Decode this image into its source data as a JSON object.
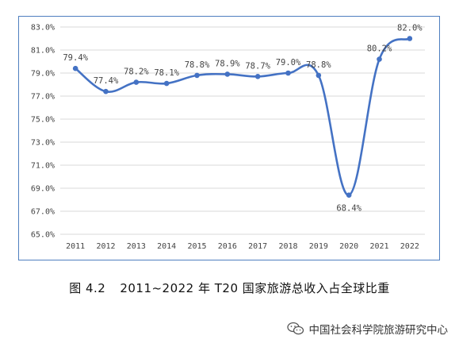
{
  "caption": {
    "figure_number": "图 4.2",
    "title": "2011~2022 年 T20 国家旅游总收入占全球比重"
  },
  "watermark": {
    "text": "中国社会科学院旅游研究中心",
    "icon": "wechat-icon"
  },
  "colors": {
    "line": "#4472c4",
    "grid": "#d9d9d9",
    "frame": "#4f7fbf"
  },
  "chart_data": {
    "type": "line",
    "title": "",
    "xlabel": "",
    "ylabel": "",
    "categories": [
      "2011",
      "2012",
      "2013",
      "2014",
      "2015",
      "2016",
      "2017",
      "2018",
      "2019",
      "2020",
      "2021",
      "2022"
    ],
    "series": [
      {
        "values": [
          79.4,
          77.4,
          78.2,
          78.1,
          78.8,
          78.9,
          78.7,
          79.0,
          78.8,
          68.4,
          80.2,
          82.0
        ]
      }
    ],
    "data_labels": [
      "79.4%",
      "77.4%",
      "78.2%",
      "78.1%",
      "78.8%",
      "78.9%",
      "78.7%",
      "79.0%",
      "78.8%",
      "68.4%",
      "80.2%",
      "82.0%"
    ],
    "ylim": [
      65.0,
      83.0
    ],
    "yticks": [
      65.0,
      67.0,
      69.0,
      71.0,
      73.0,
      75.0,
      77.0,
      79.0,
      81.0,
      83.0
    ],
    "ytick_labels": [
      "65.0%",
      "67.0%",
      "69.0%",
      "71.0%",
      "73.0%",
      "75.0%",
      "77.0%",
      "79.0%",
      "81.0%",
      "83.0%"
    ],
    "grid": true,
    "legend": "none",
    "smooth": true
  }
}
